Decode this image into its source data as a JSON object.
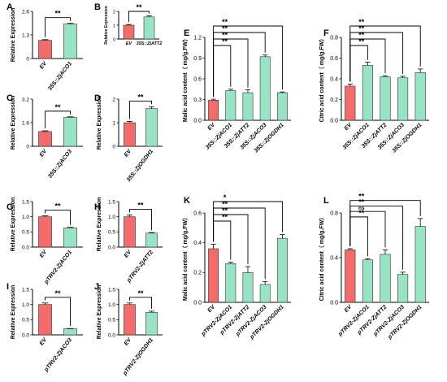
{
  "colors": {
    "control": "#F36B6B",
    "treatment": "#98E3C3",
    "axis": "#000000"
  },
  "chart_data": [
    {
      "panel": "A",
      "type": "bar",
      "ylabel": "Relative Expression",
      "categories": [
        "EV",
        "35S::ZjACO1"
      ],
      "values": [
        1.0,
        1.9
      ],
      "errors": [
        0.04,
        0.04
      ],
      "yticks": [
        "0",
        "1.3",
        "2.6"
      ],
      "ylim": [
        0,
        2.6
      ],
      "significance": [
        {
          "from": 0,
          "to": 1,
          "label": "**"
        }
      ]
    },
    {
      "panel": "B",
      "type": "bar",
      "ylabel": "Relative Expression",
      "categories": [
        "EV",
        "35S::ZjATT2"
      ],
      "values": [
        1.0,
        1.6
      ],
      "errors": [
        0.05,
        0.07
      ],
      "yticks": [
        "0",
        "1",
        "2"
      ],
      "ylim": [
        0,
        2
      ],
      "significance": [
        {
          "from": 0,
          "to": 1,
          "label": "**"
        }
      ]
    },
    {
      "panel": "C",
      "type": "bar",
      "ylabel": "Relative Expression",
      "categories": [
        "EV",
        "35S::ZjACO3"
      ],
      "values": [
        1.0,
        1.95
      ],
      "errors": [
        0.05,
        0.05
      ],
      "yticks": [
        "0",
        "1.6",
        "3.2"
      ],
      "ylim": [
        0,
        3.2
      ],
      "significance": [
        {
          "from": 0,
          "to": 1,
          "label": "**"
        }
      ]
    },
    {
      "panel": "D",
      "type": "bar",
      "ylabel": "Relative Expression",
      "categories": [
        "EV",
        "35S::ZjOGDH1"
      ],
      "values": [
        1.0,
        1.6
      ],
      "errors": [
        0.05,
        0.08
      ],
      "yticks": [
        "0",
        "1",
        "2"
      ],
      "ylim": [
        0,
        2
      ],
      "significance": [
        {
          "from": 0,
          "to": 1,
          "label": "**"
        }
      ]
    },
    {
      "panel": "E",
      "type": "bar",
      "ylabel": "Malic acid content（ mg/g.FW）",
      "categories": [
        "EV",
        "35S::ZjACO1",
        "35S::ZjATT2",
        "35S::ZjACO3",
        "35S::ZjOGDH1"
      ],
      "values": [
        0.29,
        0.43,
        0.4,
        0.92,
        0.4
      ],
      "errors": [
        0.015,
        0.02,
        0.04,
        0.025,
        0.01
      ],
      "yticks": [
        "0.0",
        "0.3",
        "0.6",
        "0.9",
        "1.2"
      ],
      "ylim": [
        0,
        1.2
      ],
      "significance": [
        {
          "from": 0,
          "to": 1,
          "label": "**"
        },
        {
          "from": 0,
          "to": 2,
          "label": "**"
        },
        {
          "from": 0,
          "to": 3,
          "label": "**"
        },
        {
          "from": 0,
          "to": 4,
          "label": "**"
        }
      ]
    },
    {
      "panel": "F",
      "type": "bar",
      "ylabel": "Citric acid content（ mg/g.FW）",
      "categories": [
        "EV",
        "35S::ZjACO1",
        "35S::ZjATT2",
        "35S::ZjACO3",
        "35S::ZjOGDH1"
      ],
      "values": [
        0.33,
        0.53,
        0.42,
        0.41,
        0.46
      ],
      "errors": [
        0.02,
        0.03,
        0.01,
        0.015,
        0.035
      ],
      "yticks": [
        "0.0",
        "0.2",
        "0.4",
        "0.6",
        "0.8"
      ],
      "ylim": [
        0,
        0.8
      ],
      "significance": [
        {
          "from": 0,
          "to": 1,
          "label": "**"
        },
        {
          "from": 0,
          "to": 2,
          "label": "**"
        },
        {
          "from": 0,
          "to": 3,
          "label": "**"
        },
        {
          "from": 0,
          "to": 4,
          "label": "**"
        }
      ]
    },
    {
      "panel": "G",
      "type": "bar",
      "ylabel": "Relative Expression",
      "categories": [
        "EV",
        "pTRV2-ZjACO1"
      ],
      "values": [
        1.0,
        0.63
      ],
      "errors": [
        0.03,
        0.02
      ],
      "yticks": [
        "0.0",
        "0.5",
        "1.0",
        "1.5"
      ],
      "ylim": [
        0,
        1.5
      ],
      "significance": [
        {
          "from": 0,
          "to": 1,
          "label": "**"
        }
      ]
    },
    {
      "panel": "H",
      "type": "bar",
      "ylabel": "Relative Expression",
      "categories": [
        "EV",
        "pTRV2-ZjATT2"
      ],
      "values": [
        1.0,
        0.46
      ],
      "errors": [
        0.06,
        0.02
      ],
      "yticks": [
        "0.0",
        "0.5",
        "1.0",
        "1.5"
      ],
      "ylim": [
        0,
        1.5
      ],
      "significance": [
        {
          "from": 0,
          "to": 1,
          "label": "**"
        }
      ]
    },
    {
      "panel": "I",
      "type": "bar",
      "ylabel": "Relative Expression",
      "categories": [
        "EV",
        "pTRV2-ZjACO3"
      ],
      "values": [
        1.0,
        0.2
      ],
      "errors": [
        0.05,
        0.01
      ],
      "yticks": [
        "0.0",
        "0.5",
        "1.0",
        "1.5"
      ],
      "ylim": [
        0,
        1.5
      ],
      "significance": [
        {
          "from": 0,
          "to": 1,
          "label": "**"
        }
      ]
    },
    {
      "panel": "J",
      "type": "bar",
      "ylabel": "Relative Expression",
      "categories": [
        "EV",
        "pTRV2-ZjOGDH1"
      ],
      "values": [
        1.0,
        0.74
      ],
      "errors": [
        0.05,
        0.04
      ],
      "yticks": [
        "0.0",
        "0.5",
        "1.0",
        "1.5"
      ],
      "ylim": [
        0,
        1.5
      ],
      "significance": [
        {
          "from": 0,
          "to": 1,
          "label": "**"
        }
      ]
    },
    {
      "panel": "K",
      "type": "bar",
      "ylabel": "Malic acid content（ mg/g.FW）",
      "categories": [
        "EV",
        "pTRV2-ZjACO1",
        "pTRV2-ZjATT2",
        "pTRV2-ZjACO3",
        "pTRV2-ZjOGDH1"
      ],
      "values": [
        0.36,
        0.26,
        0.2,
        0.12,
        0.43
      ],
      "errors": [
        0.03,
        0.01,
        0.04,
        0.02,
        0.025
      ],
      "yticks": [
        "0.0",
        "0.2",
        "0.4",
        "0.6"
      ],
      "ylim": [
        0,
        0.6
      ],
      "significance": [
        {
          "from": 0,
          "to": 1,
          "label": "**"
        },
        {
          "from": 0,
          "to": 2,
          "label": "**"
        },
        {
          "from": 0,
          "to": 3,
          "label": "**"
        },
        {
          "from": 0,
          "to": 4,
          "label": "*"
        }
      ]
    },
    {
      "panel": "L",
      "type": "bar",
      "ylabel": "Citric acid content（ mg/g.FW）",
      "categories": [
        "EV",
        "pTRV2-ZjACO1",
        "pTRV2-ZjATT2",
        "pTRV2-ZjACO3",
        "pTRV2-ZjOGDH1"
      ],
      "values": [
        0.47,
        0.38,
        0.43,
        0.25,
        0.68
      ],
      "errors": [
        0.01,
        0.01,
        0.04,
        0.02,
        0.07
      ],
      "yticks": [
        "0.0",
        "0.4",
        "0.8"
      ],
      "ylim": [
        0,
        0.8
      ],
      "significance": [
        {
          "from": 0,
          "to": 1,
          "label": "**"
        },
        {
          "from": 0,
          "to": 2,
          "label": "ns"
        },
        {
          "from": 0,
          "to": 3,
          "label": "**"
        },
        {
          "from": 0,
          "to": 4,
          "label": "**"
        }
      ]
    }
  ]
}
